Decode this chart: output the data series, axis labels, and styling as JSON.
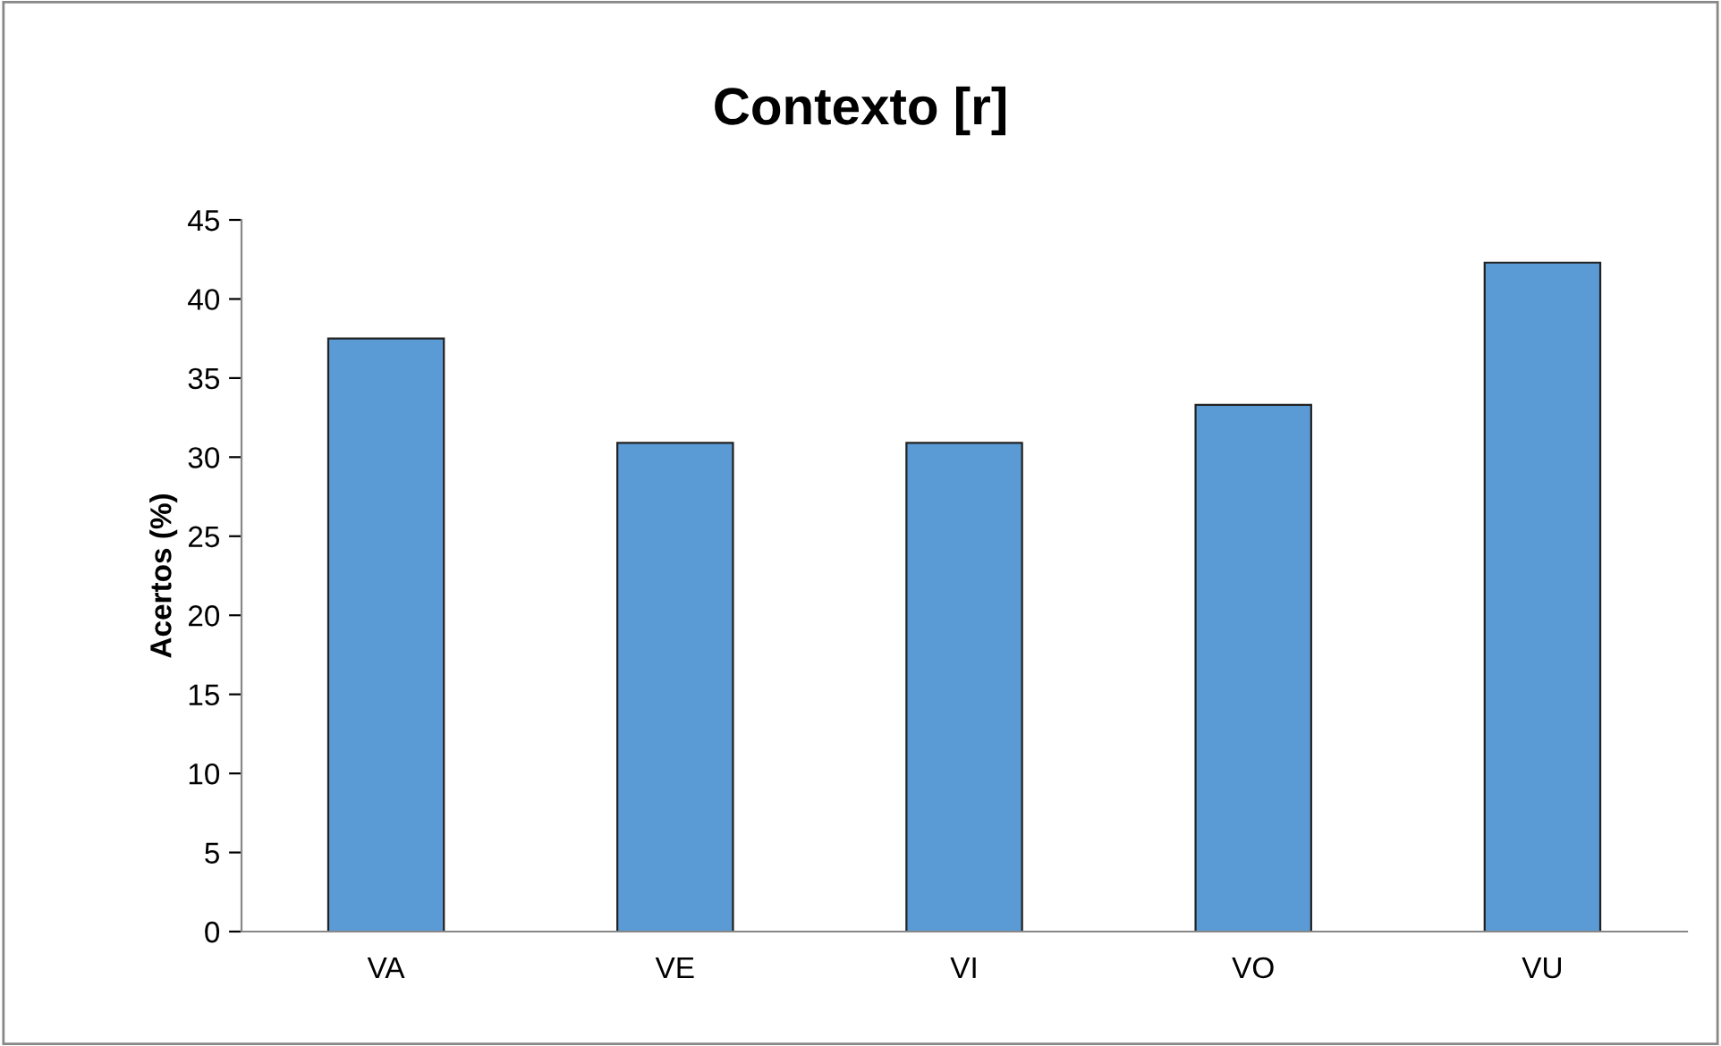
{
  "chart_data": {
    "type": "bar",
    "title": "Contexto [r]",
    "ylabel": "Acertos (%)",
    "categories": [
      "VA",
      "VE",
      "VI",
      "VO",
      "VU"
    ],
    "values": [
      37.5,
      30.9,
      30.9,
      33.3,
      42.3
    ],
    "color": "#5b9bd5",
    "ylim": [
      0,
      45
    ],
    "yticks": [
      0,
      5,
      10,
      15,
      20,
      25,
      30,
      35,
      40,
      45
    ],
    "grid": false,
    "legend": false
  }
}
